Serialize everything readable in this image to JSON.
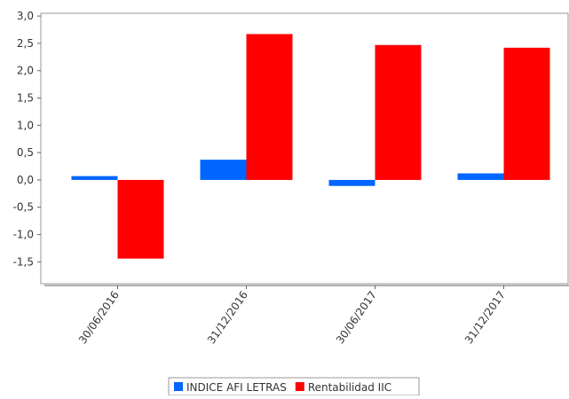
{
  "chart_data": {
    "type": "bar",
    "categories": [
      "30/06/2016",
      "31/12/2016",
      "30/06/2017",
      "31/12/2017"
    ],
    "series": [
      {
        "name": "INDICE AFI LETRAS",
        "color": "#0066ff",
        "values": [
          0.07,
          0.37,
          -0.11,
          0.12
        ]
      },
      {
        "name": "Rentabilidad IIC",
        "color": "#ff0000",
        "values": [
          -1.44,
          2.67,
          2.47,
          2.42
        ]
      }
    ],
    "ylim": [
      -1.9,
      3.05
    ],
    "yticks": [
      {
        "value": 3.0,
        "label": "3,0"
      },
      {
        "value": 2.5,
        "label": "2,5"
      },
      {
        "value": 2.0,
        "label": "2,0"
      },
      {
        "value": 1.5,
        "label": "1,5"
      },
      {
        "value": 1.0,
        "label": "1,0"
      },
      {
        "value": 0.5,
        "label": "0,5"
      },
      {
        "value": 0,
        "label": "0,0"
      },
      {
        "value": -0.5,
        "label": "-0,5"
      },
      {
        "value": -1.0,
        "label": "-1,0"
      },
      {
        "value": -1.5,
        "label": "-1,5"
      }
    ],
    "grid": false,
    "legend": "bottom"
  }
}
